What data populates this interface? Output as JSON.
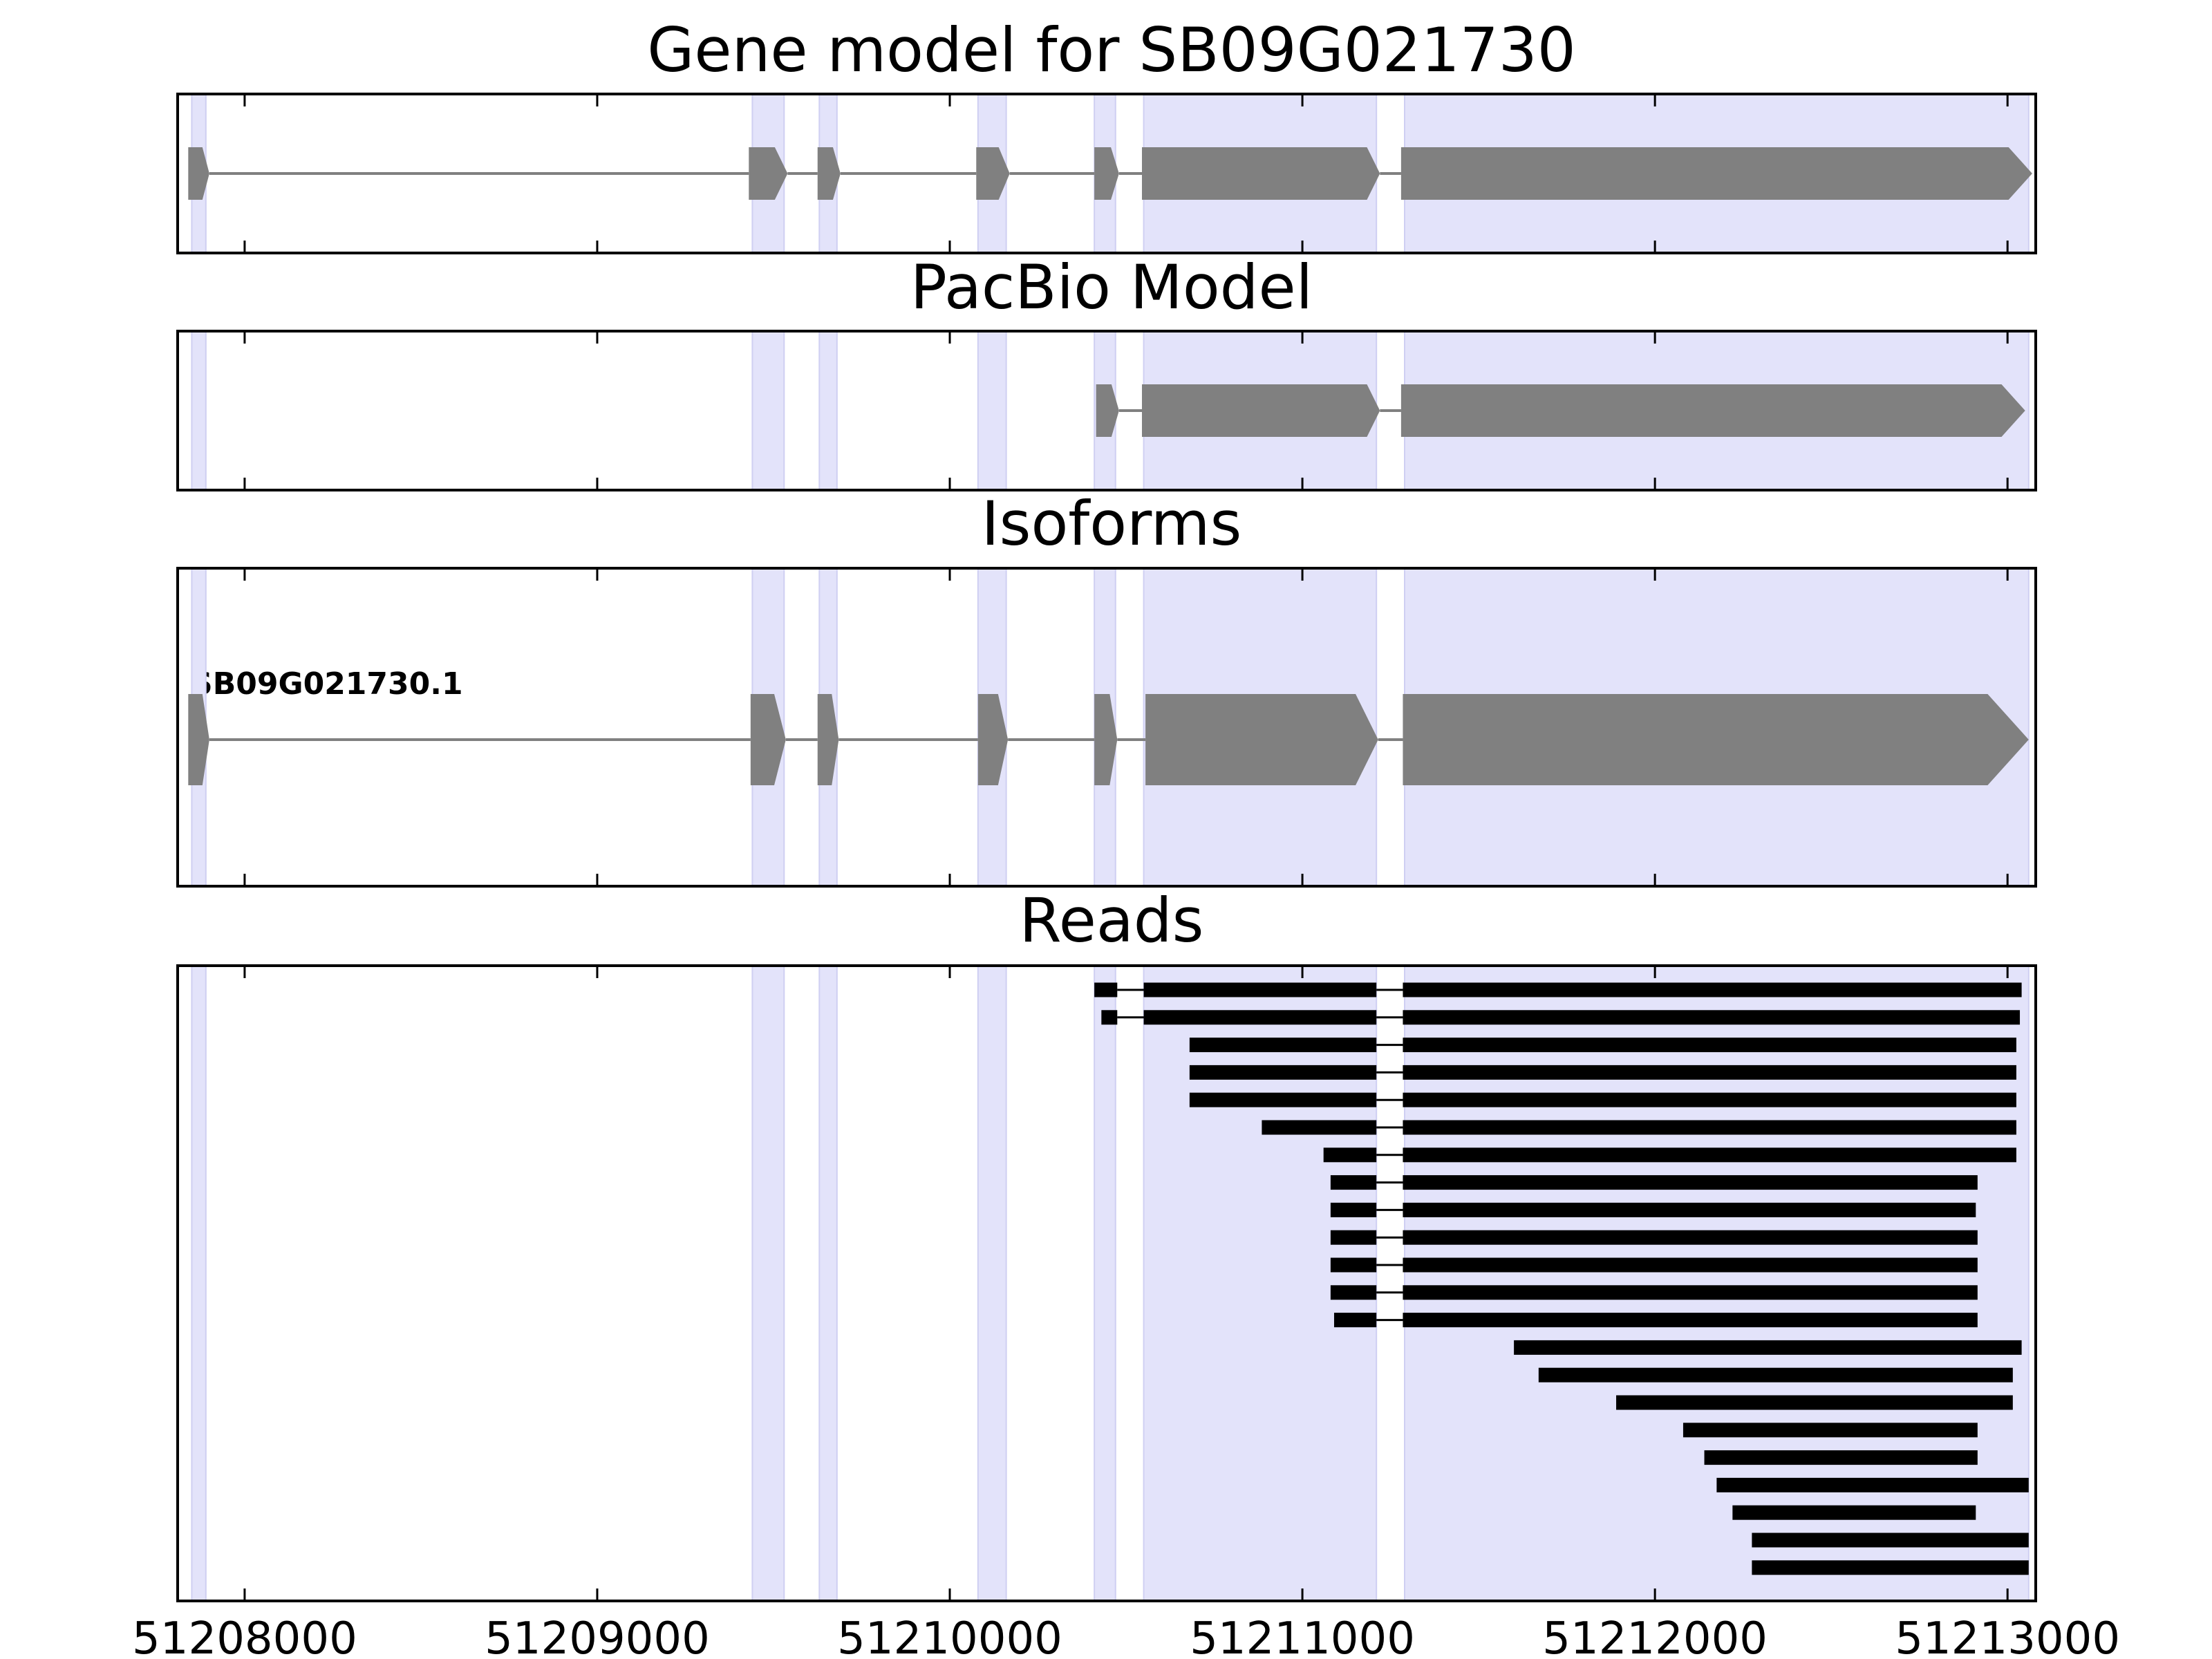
{
  "colors": {
    "shade": "#e3e3fa",
    "shade_edge": "#cfcff2",
    "model": "#808080",
    "read": "#000000",
    "frame": "#000000"
  },
  "chart_data": {
    "type": "gene_track",
    "xlim": [
      51207810,
      51213080
    ],
    "xticks": [
      51208000,
      51209000,
      51210000,
      51211000,
      51212000,
      51213000
    ],
    "xtick_labels": [
      "51208000",
      "51209000",
      "51210000",
      "51211000",
      "51212000",
      "51213000"
    ],
    "exon_regions": [
      [
        51207850,
        51207890
      ],
      [
        51209440,
        51209530
      ],
      [
        51209630,
        51209680
      ],
      [
        51210080,
        51210160
      ],
      [
        51210410,
        51210470
      ],
      [
        51210550,
        51211210
      ],
      [
        51211290,
        51213060
      ]
    ],
    "panels": [
      {
        "title": "Gene model for SB09G021730",
        "kind": "model",
        "models": [
          {
            "label": "",
            "exons": [
              [
                51207840,
                51207900
              ],
              [
                51209430,
                51209540
              ],
              [
                51209625,
                51209690
              ],
              [
                51210075,
                51210170
              ],
              [
                51210410,
                51210480
              ],
              [
                51210545,
                51211220
              ],
              [
                51211280,
                51213070
              ]
            ]
          }
        ]
      },
      {
        "title": "PacBio Model",
        "kind": "model",
        "models": [
          {
            "label": "",
            "exons": [
              [
                51210415,
                51210480
              ],
              [
                51210545,
                51211220
              ],
              [
                51211280,
                51213050
              ]
            ]
          }
        ]
      },
      {
        "title": "Isoforms",
        "kind": "model",
        "models": [
          {
            "label": "SB09G021730.1",
            "exons": [
              [
                51207840,
                51207900
              ],
              [
                51209435,
                51209535
              ],
              [
                51209625,
                51209685
              ],
              [
                51210080,
                51210165
              ],
              [
                51210410,
                51210475
              ],
              [
                51210555,
                51211215
              ],
              [
                51211285,
                51213060
              ]
            ]
          }
        ]
      },
      {
        "title": "Reads",
        "kind": "reads",
        "reads": [
          [
            [
              51210410,
              51210475
            ],
            [
              51210550,
              51211210
            ],
            [
              51211285,
              51213040
            ]
          ],
          [
            [
              51210430,
              51210475
            ],
            [
              51210550,
              51211210
            ],
            [
              51211285,
              51213035
            ]
          ],
          [
            [
              51210680,
              51211210
            ],
            [
              51211285,
              51213025
            ]
          ],
          [
            [
              51210680,
              51211210
            ],
            [
              51211285,
              51213025
            ]
          ],
          [
            [
              51210680,
              51211210
            ],
            [
              51211285,
              51213025
            ]
          ],
          [
            [
              51210885,
              51211210
            ],
            [
              51211285,
              51213025
            ]
          ],
          [
            [
              51211060,
              51211210
            ],
            [
              51211285,
              51213025
            ]
          ],
          [
            [
              51211080,
              51211210
            ],
            [
              51211285,
              51212915
            ]
          ],
          [
            [
              51211080,
              51211210
            ],
            [
              51211285,
              51212910
            ]
          ],
          [
            [
              51211080,
              51211210
            ],
            [
              51211285,
              51212915
            ]
          ],
          [
            [
              51211080,
              51211210
            ],
            [
              51211285,
              51212915
            ]
          ],
          [
            [
              51211080,
              51211210
            ],
            [
              51211285,
              51212915
            ]
          ],
          [
            [
              51211090,
              51211210
            ],
            [
              51211285,
              51212915
            ]
          ],
          [
            [
              51211600,
              51213040
            ]
          ],
          [
            [
              51211670,
              51213015
            ]
          ],
          [
            [
              51211890,
              51213015
            ]
          ],
          [
            [
              51212080,
              51212915
            ]
          ],
          [
            [
              51212140,
              51212915
            ]
          ],
          [
            [
              51212175,
              51213060
            ]
          ],
          [
            [
              51212220,
              51212910
            ]
          ],
          [
            [
              51212275,
              51213060
            ]
          ],
          [
            [
              51212275,
              51213060
            ]
          ]
        ]
      }
    ]
  }
}
